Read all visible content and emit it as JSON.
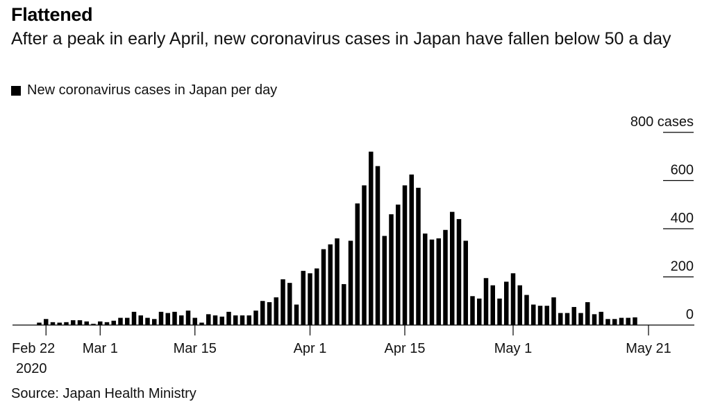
{
  "header": {
    "title": "Flattened",
    "subtitle": "After a peak in early April, new coronavirus cases in Japan have fallen below 50 a day"
  },
  "legend": {
    "label": "New coronavirus cases in Japan per day"
  },
  "footer": {
    "source": "Source: Japan Health Ministry"
  },
  "colors": {
    "bars": "#000000",
    "gridlines": "#000000",
    "background": "#ffffff"
  },
  "chart_data": {
    "type": "bar",
    "title": "Flattened",
    "subtitle": "After a peak in early April, new coronavirus cases in Japan have fallen below 50 a day",
    "xlabel": "",
    "ylabel": "",
    "ylim": [
      0,
      800
    ],
    "y_ticks": [
      0,
      200,
      400,
      600,
      800
    ],
    "y_tick_labels": [
      "0",
      "200",
      "400",
      "600",
      "800 cases"
    ],
    "y_axis_side": "right",
    "grid": true,
    "legend_position": "top-left",
    "x_ticks": [
      {
        "date": "Feb 22",
        "label": "Feb 22",
        "sublabel": "2020"
      },
      {
        "date": "Mar 1",
        "label": "Mar 1"
      },
      {
        "date": "Mar 15",
        "label": "Mar 15"
      },
      {
        "date": "Apr 1",
        "label": "Apr 1"
      },
      {
        "date": "Apr 15",
        "label": "Apr 15"
      },
      {
        "date": "May 1",
        "label": "May 1"
      },
      {
        "date": "May 21",
        "label": "May 21"
      }
    ],
    "series": [
      {
        "name": "New coronavirus cases in Japan per day",
        "categories": [
          "Feb 21",
          "Feb 22",
          "Feb 23",
          "Feb 24",
          "Feb 25",
          "Feb 26",
          "Feb 27",
          "Feb 28",
          "Feb 29",
          "Mar 1",
          "Mar 2",
          "Mar 3",
          "Mar 4",
          "Mar 5",
          "Mar 6",
          "Mar 7",
          "Mar 8",
          "Mar 9",
          "Mar 10",
          "Mar 11",
          "Mar 12",
          "Mar 13",
          "Mar 14",
          "Mar 15",
          "Mar 16",
          "Mar 17",
          "Mar 18",
          "Mar 19",
          "Mar 20",
          "Mar 21",
          "Mar 22",
          "Mar 23",
          "Mar 24",
          "Mar 25",
          "Mar 26",
          "Mar 27",
          "Mar 28",
          "Mar 29",
          "Mar 30",
          "Mar 31",
          "Apr 1",
          "Apr 2",
          "Apr 3",
          "Apr 4",
          "Apr 5",
          "Apr 6",
          "Apr 7",
          "Apr 8",
          "Apr 9",
          "Apr 10",
          "Apr 11",
          "Apr 12",
          "Apr 13",
          "Apr 14",
          "Apr 15",
          "Apr 16",
          "Apr 17",
          "Apr 18",
          "Apr 19",
          "Apr 20",
          "Apr 21",
          "Apr 22",
          "Apr 23",
          "Apr 24",
          "Apr 25",
          "Apr 26",
          "Apr 27",
          "Apr 28",
          "Apr 29",
          "Apr 30",
          "May 1",
          "May 2",
          "May 3",
          "May 4",
          "May 5",
          "May 6",
          "May 7",
          "May 8",
          "May 9",
          "May 10",
          "May 11",
          "May 12",
          "May 13",
          "May 14",
          "May 15",
          "May 16",
          "May 17",
          "May 18",
          "May 19",
          "May 20",
          "May 21"
        ],
        "values": [
          10,
          25,
          12,
          10,
          12,
          20,
          20,
          15,
          5,
          15,
          12,
          18,
          30,
          30,
          55,
          40,
          30,
          25,
          55,
          50,
          55,
          40,
          60,
          30,
          10,
          45,
          40,
          35,
          55,
          40,
          40,
          40,
          60,
          100,
          95,
          115,
          190,
          175,
          85,
          225,
          215,
          235,
          315,
          335,
          360,
          170,
          350,
          505,
          580,
          720,
          660,
          370,
          460,
          500,
          580,
          625,
          570,
          380,
          355,
          360,
          395,
          470,
          440,
          350,
          120,
          110,
          195,
          165,
          110,
          180,
          215,
          165,
          125,
          85,
          80,
          80,
          115,
          50,
          50,
          75,
          50,
          95,
          45,
          55,
          25,
          25,
          30,
          30,
          32,
          0,
          0
        ]
      }
    ]
  }
}
